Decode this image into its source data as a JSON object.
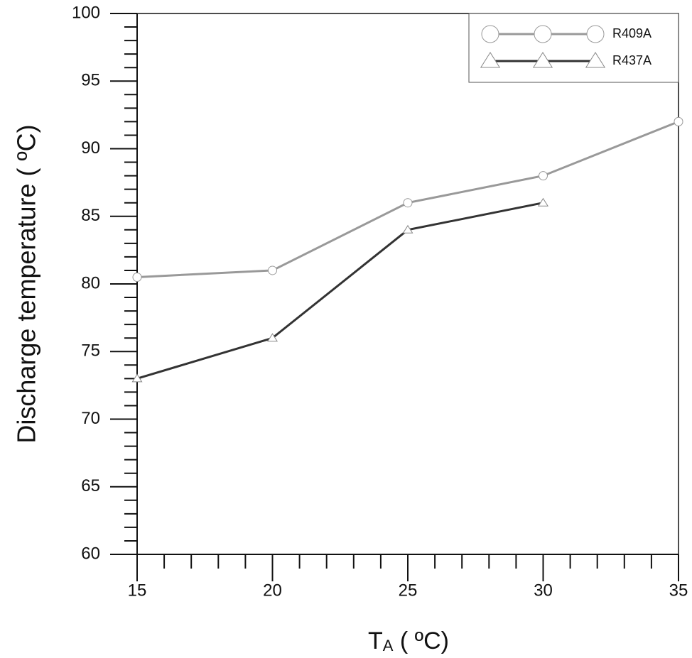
{
  "chart_data": {
    "type": "line",
    "x_label": {
      "symbol": "T",
      "subscript": "A",
      "unit": " ( ºC)"
    },
    "y_label": "Discharge temperature ( ºC)",
    "x": [
      15,
      20,
      25,
      30,
      35
    ],
    "series": [
      {
        "name": "R409A",
        "color": "#999999",
        "marker": "circle",
        "values": [
          80.5,
          81,
          86,
          88,
          92
        ]
      },
      {
        "name": "R437A",
        "color": "#333333",
        "marker": "triangle",
        "values": [
          73,
          76,
          84,
          86,
          null
        ]
      }
    ],
    "xlim": [
      15,
      35
    ],
    "xticks": [
      15,
      20,
      25,
      30,
      35
    ],
    "ylim": [
      60,
      100
    ],
    "yticks": [
      60,
      65,
      70,
      75,
      80,
      85,
      90,
      95,
      100
    ],
    "legend": "upper right"
  }
}
